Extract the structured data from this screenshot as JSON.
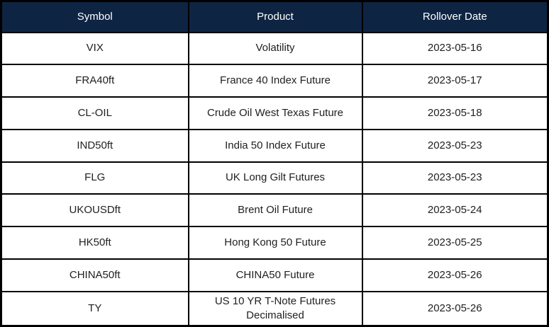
{
  "colors": {
    "header_bg": "#0e2443",
    "header_text": "#ffffff",
    "body_bg": "#ffffff",
    "body_text": "#1f1f1f",
    "border": "#000000"
  },
  "table": {
    "headers": {
      "symbol": "Symbol",
      "product": "Product",
      "rollover_date": "Rollover Date"
    },
    "rows": [
      {
        "symbol": "VIX",
        "product": "Volatility",
        "rollover_date": "2023-05-16"
      },
      {
        "symbol": "FRA40ft",
        "product": "France 40 Index Future",
        "rollover_date": "2023-05-17"
      },
      {
        "symbol": "CL-OIL",
        "product": "Crude Oil West Texas Future",
        "rollover_date": "2023-05-18"
      },
      {
        "symbol": "IND50ft",
        "product": "India 50 Index Future",
        "rollover_date": "2023-05-23"
      },
      {
        "symbol": "FLG",
        "product": "UK Long Gilt Futures",
        "rollover_date": "2023-05-23"
      },
      {
        "symbol": "UKOUSDft",
        "product": "Brent Oil Future",
        "rollover_date": "2023-05-24"
      },
      {
        "symbol": "HK50ft",
        "product": "Hong Kong 50 Future",
        "rollover_date": "2023-05-25"
      },
      {
        "symbol": "CHINA50ft",
        "product": "CHINA50 Future",
        "rollover_date": "2023-05-26"
      },
      {
        "symbol": "TY",
        "product": "US 10 YR T-Note Futures Decimalised",
        "rollover_date": "2023-05-26"
      }
    ]
  },
  "chart_data": {
    "type": "table",
    "columns": [
      "Symbol",
      "Product",
      "Rollover Date"
    ],
    "rows": [
      [
        "VIX",
        "Volatility",
        "2023-05-16"
      ],
      [
        "FRA40ft",
        "France 40 Index Future",
        "2023-05-17"
      ],
      [
        "CL-OIL",
        "Crude Oil West Texas Future",
        "2023-05-18"
      ],
      [
        "IND50ft",
        "India 50 Index Future",
        "2023-05-23"
      ],
      [
        "FLG",
        "UK Long Gilt Futures",
        "2023-05-23"
      ],
      [
        "UKOUSDft",
        "Brent Oil Future",
        "2023-05-24"
      ],
      [
        "HK50ft",
        "Hong Kong 50 Future",
        "2023-05-25"
      ],
      [
        "CHINA50ft",
        "CHINA50 Future",
        "2023-05-26"
      ],
      [
        "TY",
        "US 10 YR T-Note Futures Decimalised",
        "2023-05-26"
      ]
    ],
    "layout": {
      "header_background": "#0e2443",
      "header_text_color": "#ffffff",
      "grid": true,
      "cell_alignment": "center"
    }
  }
}
